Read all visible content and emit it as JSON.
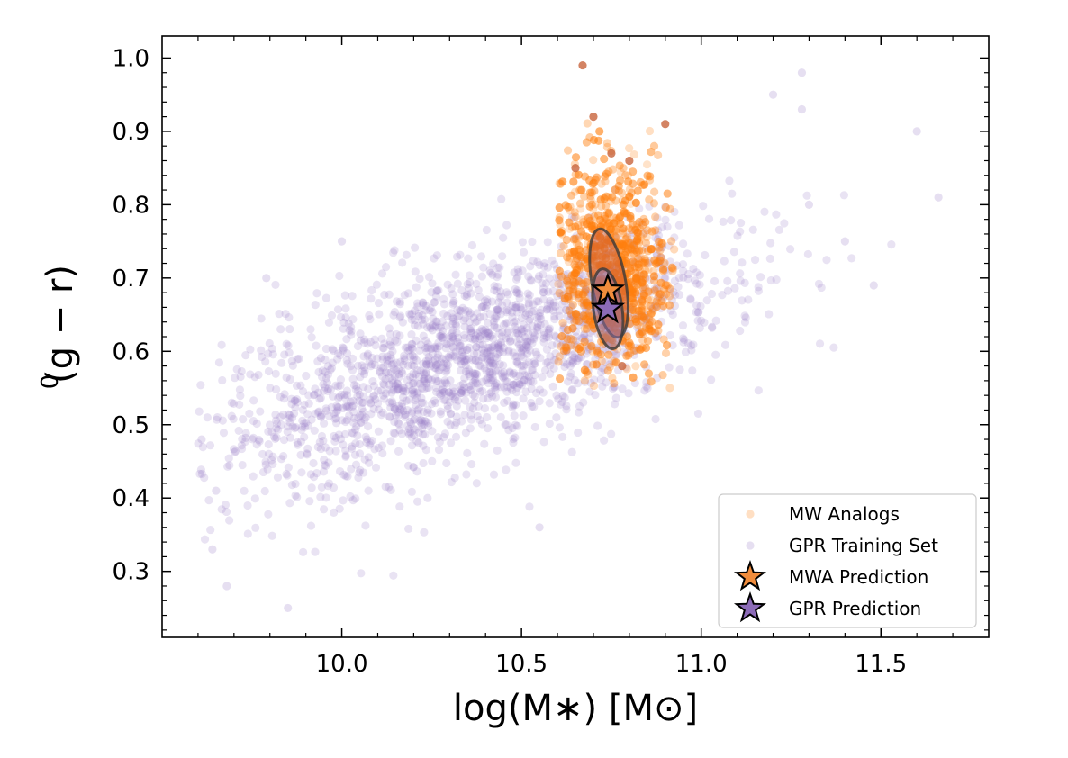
{
  "chart_data": {
    "type": "scatter",
    "xlabel": "log(M∗) [M⊙]",
    "ylabel": "(g − r)",
    "ylabel_superscript": "0",
    "xlim": [
      9.5,
      11.8
    ],
    "ylim": [
      0.21,
      1.03
    ],
    "xticks": [
      10.0,
      10.5,
      11.0,
      11.5
    ],
    "xtick_labels": [
      "10.0",
      "10.5",
      "11.0",
      "11.5"
    ],
    "yticks": [
      0.3,
      0.4,
      0.5,
      0.6,
      0.7,
      0.8,
      0.9,
      1.0
    ],
    "ytick_labels": [
      "0.3",
      "0.4",
      "0.5",
      "0.6",
      "0.7",
      "0.8",
      "0.9",
      "1.0"
    ],
    "grid": false,
    "legend_position": "bottom-right",
    "colors": {
      "gpr_points": "#9b7fc7",
      "mw_points": "#ff7f0e",
      "mwa_star": "#f08c3c",
      "gpr_star": "#8c6bb8",
      "ellipse_stroke": "#3a3a3a",
      "mwa_ellipse_fill": "#c85a3a",
      "gpr_ellipse_fill": "#8a6ba8"
    },
    "series": [
      {
        "name": "GPR Training Set",
        "marker": "circle",
        "distribution": {
          "x_range": [
            9.6,
            11.66
          ],
          "y_range": [
            0.25,
            0.98
          ],
          "trend": "0.58 + 0.155 * (x - 10.3)",
          "scatter_y": 0.065,
          "x_mean": 10.35,
          "x_sd": 0.36
        },
        "points": [
          {
            "x": 9.85,
            "y": 0.25
          },
          {
            "x": 10.55,
            "y": 0.36
          },
          {
            "x": 10.7,
            "y": 0.66
          },
          {
            "x": 10.9,
            "y": 0.7
          },
          {
            "x": 11.28,
            "y": 0.98
          },
          {
            "x": 11.2,
            "y": 0.95
          },
          {
            "x": 11.28,
            "y": 0.93
          },
          {
            "x": 11.6,
            "y": 0.9
          },
          {
            "x": 11.66,
            "y": 0.81
          },
          {
            "x": 11.48,
            "y": 0.69
          },
          {
            "x": 11.3,
            "y": 0.8
          },
          {
            "x": 11.4,
            "y": 0.75
          },
          {
            "x": 9.61,
            "y": 0.48
          },
          {
            "x": 9.65,
            "y": 0.41
          },
          {
            "x": 9.64,
            "y": 0.33
          },
          {
            "x": 9.68,
            "y": 0.28
          },
          {
            "x": 9.79,
            "y": 0.7
          },
          {
            "x": 10.0,
            "y": 0.75
          }
        ]
      },
      {
        "name": "MW Analogs",
        "marker": "circle",
        "distribution": {
          "x_range": [
            10.6,
            10.93
          ],
          "y_range": [
            0.55,
            0.92
          ],
          "x_center": 10.745,
          "y_center": 0.71,
          "x_sd": 0.085,
          "y_sd": 0.07
        },
        "points": [
          {
            "x": 10.67,
            "y": 0.99
          },
          {
            "x": 10.7,
            "y": 0.92
          },
          {
            "x": 10.78,
            "y": 0.58
          },
          {
            "x": 10.75,
            "y": 0.87
          },
          {
            "x": 10.8,
            "y": 0.86
          },
          {
            "x": 10.65,
            "y": 0.85
          },
          {
            "x": 10.9,
            "y": 0.91
          }
        ]
      },
      {
        "name": "MWA Prediction",
        "marker": "star",
        "x": 10.74,
        "y": 0.683,
        "ellipse_1sigma": {
          "sx": 0.09,
          "sy": 0.052,
          "angle_deg": 10
        },
        "ellipse_2sigma": {
          "sx": 0.1,
          "sy": 0.075,
          "angle_deg": 10
        }
      },
      {
        "name": "GPR Prediction",
        "marker": "star",
        "x": 10.74,
        "y": 0.658,
        "ellipse_1sigma": {
          "sx": 0.085,
          "sy": 0.055,
          "angle_deg": 8
        }
      }
    ],
    "legend": [
      {
        "label": "MW Analogs",
        "marker": "circle"
      },
      {
        "label": "GPR Training Set",
        "marker": "circle"
      },
      {
        "label": "MWA Prediction",
        "marker": "star"
      },
      {
        "label": "GPR Prediction",
        "marker": "star"
      }
    ]
  }
}
